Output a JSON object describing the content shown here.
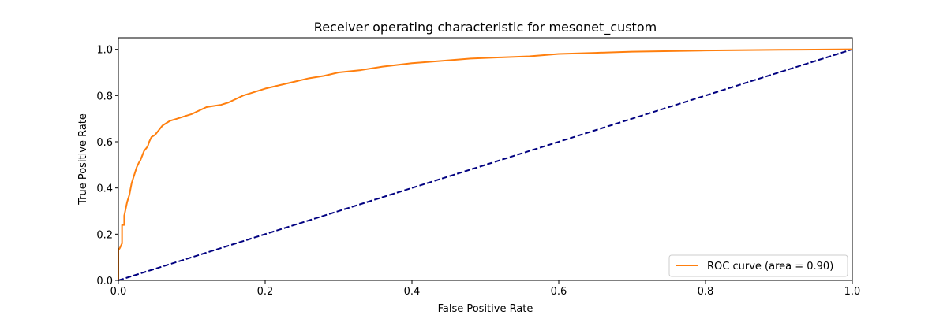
{
  "chart_data": {
    "type": "line",
    "title": "Receiver operating characteristic for mesonet_custom",
    "xlabel": "False Positive Rate",
    "ylabel": "True Positive Rate",
    "xlim": [
      0.0,
      1.0
    ],
    "ylim": [
      0.0,
      1.05
    ],
    "xticks": [
      "0.0",
      "0.2",
      "0.4",
      "0.6",
      "0.8",
      "1.0"
    ],
    "yticks": [
      "0.0",
      "0.2",
      "0.4",
      "0.6",
      "0.8",
      "1.0"
    ],
    "grid": false,
    "legend_position": "lower-right",
    "series": [
      {
        "name": "ROC curve (area = 0.90)",
        "color": "#ff7f0e",
        "style": "solid",
        "x": [
          0.0,
          0.0,
          0.002,
          0.005,
          0.005,
          0.008,
          0.008,
          0.01,
          0.012,
          0.015,
          0.018,
          0.02,
          0.022,
          0.025,
          0.028,
          0.03,
          0.035,
          0.04,
          0.042,
          0.045,
          0.05,
          0.055,
          0.06,
          0.065,
          0.07,
          0.08,
          0.09,
          0.1,
          0.11,
          0.12,
          0.13,
          0.14,
          0.15,
          0.16,
          0.17,
          0.18,
          0.2,
          0.22,
          0.24,
          0.26,
          0.28,
          0.3,
          0.33,
          0.36,
          0.4,
          0.44,
          0.48,
          0.52,
          0.56,
          0.6,
          0.65,
          0.7,
          0.8,
          0.9,
          1.0
        ],
        "y": [
          0.0,
          0.13,
          0.14,
          0.16,
          0.24,
          0.24,
          0.28,
          0.31,
          0.34,
          0.37,
          0.42,
          0.44,
          0.46,
          0.49,
          0.51,
          0.52,
          0.56,
          0.58,
          0.6,
          0.62,
          0.63,
          0.65,
          0.67,
          0.68,
          0.69,
          0.7,
          0.71,
          0.72,
          0.735,
          0.75,
          0.755,
          0.76,
          0.77,
          0.785,
          0.8,
          0.81,
          0.83,
          0.845,
          0.86,
          0.875,
          0.885,
          0.9,
          0.91,
          0.925,
          0.94,
          0.95,
          0.96,
          0.965,
          0.97,
          0.98,
          0.985,
          0.99,
          0.995,
          0.998,
          1.0
        ]
      },
      {
        "name": "",
        "color": "#000080",
        "style": "dashed",
        "x": [
          0.0,
          1.0
        ],
        "y": [
          0.0,
          1.0
        ]
      }
    ]
  }
}
